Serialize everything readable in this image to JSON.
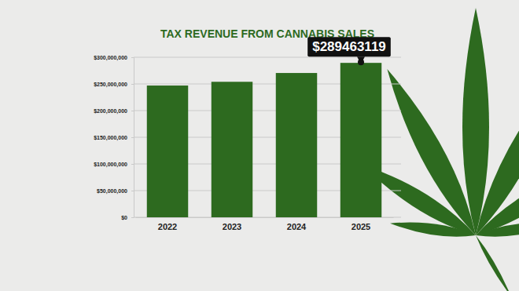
{
  "chart_data": {
    "type": "bar",
    "title": "TAX REVENUE FROM CANNABIS SALES",
    "categories": [
      "2022",
      "2023",
      "2024",
      "2025"
    ],
    "values": [
      247000000,
      254000000,
      270500000,
      289463119
    ],
    "color": "#2d6a1f",
    "ylim": [
      0,
      300000000
    ],
    "yticks": [
      {
        "value": 0,
        "label": "$0"
      },
      {
        "value": 50000000,
        "label": "$50,000,000"
      },
      {
        "value": 100000000,
        "label": "$100,000,000"
      },
      {
        "value": 150000000,
        "label": "$150,000,000"
      },
      {
        "value": 200000000,
        "label": "$200,000,000"
      },
      {
        "value": 250000000,
        "label": "$250,000,000"
      },
      {
        "value": 300000000,
        "label": "$300,000,000"
      }
    ],
    "grid": true,
    "annotations": [
      {
        "label": "$289463119",
        "x": "2025",
        "y": 289463119
      }
    ]
  }
}
